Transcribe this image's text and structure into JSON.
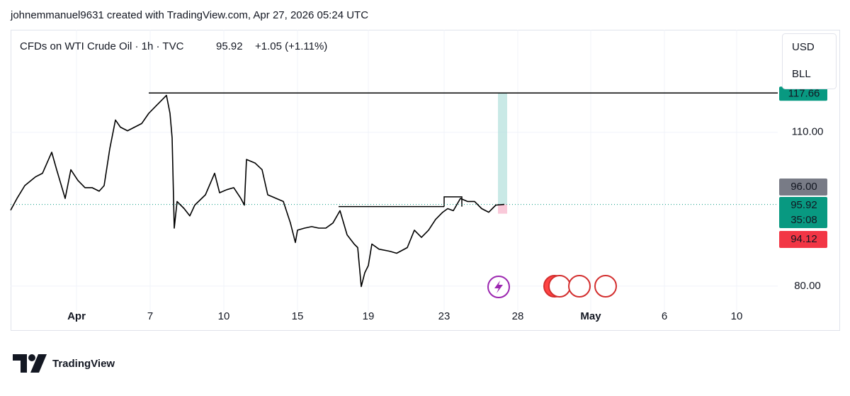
{
  "header": {
    "attribution": "johnemmanuel9631 created with TradingView.com, Apr 27, 2026 05:24 UTC"
  },
  "chart_data": {
    "type": "line",
    "title": "CFDs on WTI Crude Oil · 1h · TVC",
    "last_price": 95.92,
    "change": "+1.05 (+1.11%)",
    "currency": "USD",
    "unit": "BLL",
    "color": "#000000",
    "x": [
      0,
      9,
      20,
      35,
      45,
      58,
      65,
      77,
      85,
      95,
      105,
      115,
      125,
      132,
      140,
      148,
      155,
      165,
      175,
      185,
      195,
      205,
      215,
      220,
      225,
      228,
      231,
      235,
      245,
      253,
      260,
      275,
      288,
      295,
      305,
      315,
      325,
      330,
      333,
      345,
      355,
      363,
      375,
      385,
      395,
      402,
      405,
      415,
      425,
      435,
      445,
      455,
      465,
      475,
      485,
      490,
      495,
      500,
      505,
      510,
      520,
      535,
      545,
      560,
      570,
      580,
      590,
      600,
      610,
      617,
      625,
      635,
      645,
      655,
      665,
      675,
      685,
      697
    ],
    "values": [
      94.8,
      97.1,
      99.6,
      101.3,
      102,
      106.1,
      102.7,
      97.1,
      102.7,
      100.6,
      99.2,
      99.2,
      98.5,
      99.6,
      106.8,
      112.4,
      111,
      110.3,
      111,
      111.7,
      113.7,
      115.1,
      116.5,
      117.2,
      113.7,
      108.9,
      91.3,
      96.5,
      95.1,
      93.7,
      95.8,
      97.8,
      102,
      98.2,
      98.8,
      99.2,
      97.1,
      95.8,
      104.7,
      104,
      102.7,
      97.8,
      97.1,
      96.5,
      92.3,
      88.5,
      90.9,
      91.3,
      91.6,
      91.3,
      91.3,
      92.3,
      94.7,
      90,
      88.2,
      87.5,
      79.9,
      82.6,
      84,
      88.2,
      87.2,
      86.8,
      86.4,
      87.5,
      90.9,
      89.5,
      90.9,
      93,
      94.4,
      95.1,
      94.7,
      97.1,
      96.5,
      96.5,
      95.1,
      94.4,
      95.8,
      95.92
    ],
    "xlim": [
      0,
      1083
    ],
    "xticks": [
      {
        "value": 93,
        "label": "Apr"
      },
      {
        "value": 197,
        "label": "7"
      },
      {
        "value": 301,
        "label": "10"
      },
      {
        "value": 405,
        "label": "15"
      },
      {
        "value": 505,
        "label": "19"
      },
      {
        "value": 612,
        "label": "23"
      },
      {
        "value": 716,
        "label": "28"
      },
      {
        "value": 819,
        "label": "May"
      },
      {
        "value": 923,
        "label": "6"
      },
      {
        "value": 1025,
        "label": "10"
      }
    ],
    "ylim": [
      75,
      130
    ],
    "yticks": [
      {
        "value": 80,
        "label": "80.00"
      },
      {
        "value": 110,
        "label": "110.00"
      }
    ],
    "grid": true,
    "resistance": 117.66,
    "levels": [
      95.5,
      97.4
    ],
    "position": {
      "entry": 95.92,
      "target": 117.66,
      "stop": 94.12
    },
    "ask": {
      "value": 96,
      "label": "96.00"
    },
    "countdown": "35:08"
  },
  "footer": {
    "brand": "TradingView"
  }
}
